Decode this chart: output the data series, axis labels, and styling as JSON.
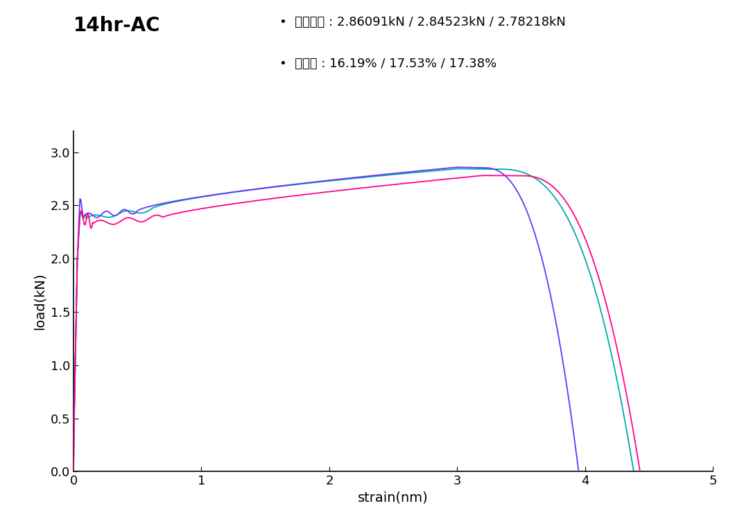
{
  "title": "14hr-AC",
  "xlabel": "strain(nm)",
  "ylabel": "load(kN)",
  "xlim": [
    0,
    5
  ],
  "ylim": [
    0.0,
    3.2
  ],
  "xticks": [
    0,
    1,
    2,
    3,
    4,
    5
  ],
  "yticks": [
    0.0,
    0.5,
    1.0,
    1.5,
    2.0,
    2.5,
    3.0
  ],
  "annotation_line1": "•  인장강도 : 2.86091kN / 2.84523kN / 2.78218kN",
  "annotation_line2": "•  연신률 : 16.19% / 17.53% / 17.38%",
  "colors": {
    "curve1": "#6633FF",
    "curve2": "#00AAAA",
    "curve3": "#FF0088"
  },
  "background": "#FFFFFF"
}
